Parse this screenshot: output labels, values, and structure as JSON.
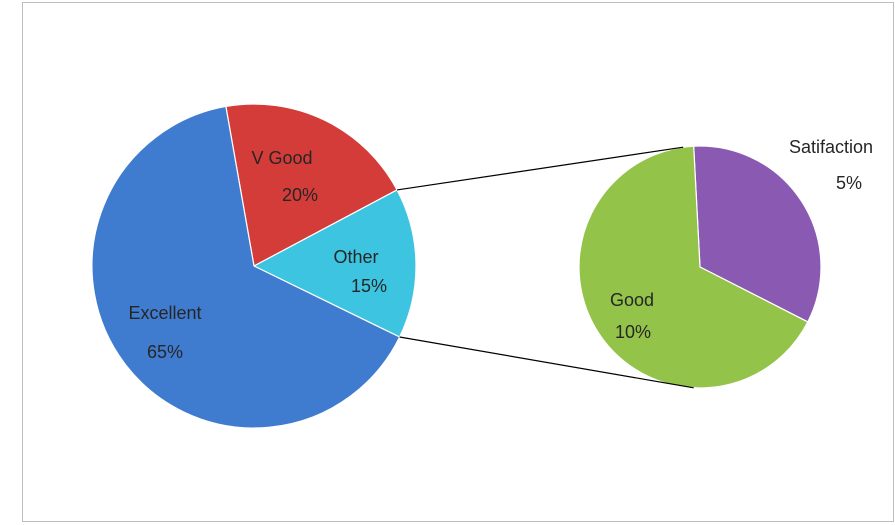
{
  "chart_data": {
    "type": "pie",
    "subtype": "pie-of-pie",
    "main_pie": {
      "slices": [
        {
          "label": "Excellent",
          "value_label": "65%",
          "value": 65,
          "color": "#3f7ccf"
        },
        {
          "label": "V Good",
          "value_label": "20%",
          "value": 20,
          "color": "#d43c3a"
        },
        {
          "label": "Other",
          "value_label": "15%",
          "value": 15,
          "color": "#3cc4e0"
        }
      ]
    },
    "secondary_pie": {
      "expands": "Other",
      "slices": [
        {
          "label": "Good",
          "value_label": "10%",
          "value": 10,
          "color": "#94c34a"
        },
        {
          "label": "Satifaction",
          "value_label": "5%",
          "value": 5,
          "color": "#8a5ab3"
        }
      ]
    },
    "connector_color": "#000000",
    "legend": "none",
    "title": ""
  }
}
